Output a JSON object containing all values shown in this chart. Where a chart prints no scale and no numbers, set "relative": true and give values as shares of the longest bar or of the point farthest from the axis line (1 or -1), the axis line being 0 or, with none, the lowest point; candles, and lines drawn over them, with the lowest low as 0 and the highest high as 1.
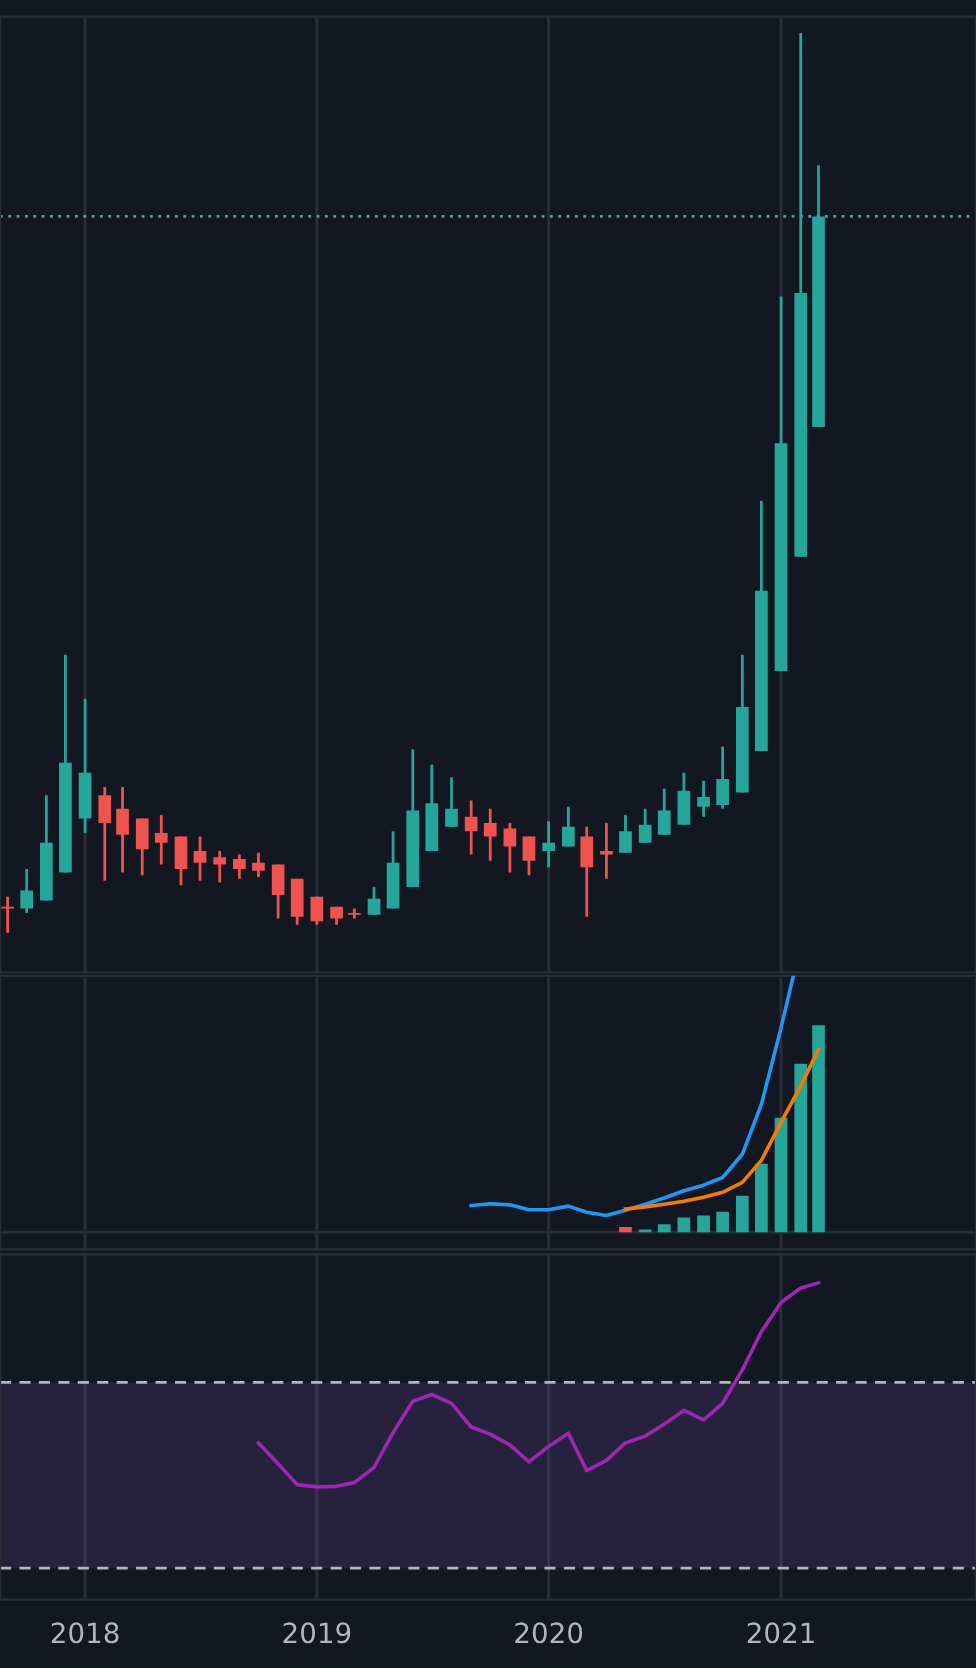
{
  "chart_data": [
    {
      "type": "candlestick",
      "relative": true,
      "tick_labels": false,
      "grid": "x",
      "x": [
        "2017-09",
        "2017-10",
        "2017-11",
        "2017-12",
        "2018-01",
        "2018-02",
        "2018-03",
        "2018-04",
        "2018-05",
        "2018-06",
        "2018-07",
        "2018-08",
        "2018-09",
        "2018-10",
        "2018-11",
        "2018-12",
        "2019-01",
        "2019-02",
        "2019-03",
        "2019-04",
        "2019-05",
        "2019-06",
        "2019-07",
        "2019-08",
        "2019-09",
        "2019-10",
        "2019-11",
        "2019-12",
        "2020-01",
        "2020-02",
        "2020-03",
        "2020-04",
        "2020-05",
        "2020-06",
        "2020-07",
        "2020-08",
        "2020-09",
        "2020-10",
        "2020-11",
        "2020-12",
        "2021-01",
        "2021-02",
        "2021-03"
      ],
      "ohlc": [
        [
          0.029,
          0.04,
          0,
          0.027
        ],
        [
          0.027,
          0.071,
          0.022,
          0.047
        ],
        [
          0.036,
          0.153,
          0.036,
          0.1
        ],
        [
          0.067,
          0.309,
          0.067,
          0.189
        ],
        [
          0.127,
          0.26,
          0.111,
          0.178
        ],
        [
          0.153,
          0.162,
          0.058,
          0.122
        ],
        [
          0.138,
          0.162,
          0.067,
          0.109
        ],
        [
          0.127,
          0.127,
          0.064,
          0.093
        ],
        [
          0.111,
          0.131,
          0.076,
          0.1
        ],
        [
          0.107,
          0.107,
          0.053,
          0.071
        ],
        [
          0.091,
          0.107,
          0.058,
          0.078
        ],
        [
          0.084,
          0.091,
          0.056,
          0.076
        ],
        [
          0.082,
          0.087,
          0.06,
          0.071
        ],
        [
          0.078,
          0.089,
          0.062,
          0.069
        ],
        [
          0.076,
          0.076,
          0.016,
          0.042
        ],
        [
          0.06,
          0.06,
          0.009,
          0.018
        ],
        [
          0.04,
          0.04,
          0.009,
          0.013
        ],
        [
          0.029,
          0.029,
          0.009,
          0.016
        ],
        [
          0.022,
          0.027,
          0.016,
          0.02
        ],
        [
          0.02,
          0.051,
          0.02,
          0.038
        ],
        [
          0.027,
          0.113,
          0.027,
          0.078
        ],
        [
          0.051,
          0.204,
          0.051,
          0.136
        ],
        [
          0.091,
          0.187,
          0.091,
          0.144
        ],
        [
          0.118,
          0.173,
          0.118,
          0.138
        ],
        [
          0.129,
          0.147,
          0.087,
          0.113
        ],
        [
          0.122,
          0.138,
          0.08,
          0.107
        ],
        [
          0.116,
          0.122,
          0.067,
          0.096
        ],
        [
          0.107,
          0.107,
          0.064,
          0.08
        ],
        [
          0.091,
          0.124,
          0.073,
          0.1
        ],
        [
          0.096,
          0.14,
          0.096,
          0.118
        ],
        [
          0.107,
          0.118,
          0.018,
          0.073
        ],
        [
          0.091,
          0.122,
          0.06,
          0.087
        ],
        [
          0.089,
          0.131,
          0.089,
          0.113
        ],
        [
          0.1,
          0.138,
          0.1,
          0.12
        ],
        [
          0.109,
          0.16,
          0.109,
          0.136
        ],
        [
          0.12,
          0.178,
          0.12,
          0.158
        ],
        [
          0.14,
          0.169,
          0.129,
          0.151
        ],
        [
          0.142,
          0.207,
          0.138,
          0.171
        ],
        [
          0.156,
          0.309,
          0.156,
          0.251
        ],
        [
          0.202,
          0.48,
          0.202,
          0.38
        ],
        [
          0.291,
          0.707,
          0.291,
          0.544
        ],
        [
          0.418,
          1.0,
          0.418,
          0.711
        ],
        [
          0.562,
          0.853,
          0.562,
          0.796
        ]
      ],
      "colors": [
        "#ef5350",
        "#26a69a",
        "#26a69a",
        "#26a69a",
        "#26a69a",
        "#ef5350",
        "#ef5350",
        "#ef5350",
        "#ef5350",
        "#ef5350",
        "#ef5350",
        "#ef5350",
        "#ef5350",
        "#ef5350",
        "#ef5350",
        "#ef5350",
        "#ef5350",
        "#ef5350",
        "#ef5350",
        "#26a69a",
        "#26a69a",
        "#26a69a",
        "#26a69a",
        "#26a69a",
        "#ef5350",
        "#ef5350",
        "#ef5350",
        "#ef5350",
        "#26a69a",
        "#26a69a",
        "#ef5350",
        "#ef5350",
        "#26a69a",
        "#26a69a",
        "#26a69a",
        "#26a69a",
        "#26a69a",
        "#26a69a",
        "#26a69a",
        "#26a69a",
        "#26a69a",
        "#26a69a",
        "#26a69a"
      ],
      "ref_lines": [
        {
          "axis": "y",
          "value": 0.796,
          "label": null,
          "color": "#4fa3a5",
          "line_style": "dotted"
        }
      ],
      "xlim": [
        "2017-08-20",
        "2021-11-04"
      ],
      "xticks": [
        "2018",
        "2019",
        "2020",
        "2021"
      ]
    },
    {
      "type": "bar",
      "relative": true,
      "tick_labels": false,
      "grid": "x",
      "series": [
        {
          "type": "bar",
          "x": [
            "2020-05",
            "2020-06",
            "2020-07",
            "2020-08",
            "2020-09",
            "2020-10",
            "2020-11",
            "2020-12",
            "2021-01",
            "2021-02",
            "2021-03"
          ],
          "values": [
            0.02,
            0.01,
            0.031,
            0.057,
            0.065,
            0.08,
            0.143,
            0.268,
            0.448,
            0.659,
            0.81
          ],
          "colors": [
            "#ef5350",
            "#26a69a",
            "#26a69a",
            "#26a69a",
            "#26a69a",
            "#26a69a",
            "#26a69a",
            "#26a69a",
            "#26a69a",
            "#26a69a",
            "#26a69a"
          ]
        },
        {
          "type": "line",
          "color": "#2196f3",
          "x": [
            "2019-09",
            "2019-10",
            "2019-11",
            "2019-12",
            "2020-01",
            "2020-02",
            "2020-03",
            "2020-04",
            "2020-05",
            "2020-06",
            "2020-07",
            "2020-08",
            "2020-09",
            "2020-10",
            "2020-11",
            "2020-12",
            "2021-01",
            "2021-01-20"
          ],
          "values": [
            0.104,
            0.111,
            0.107,
            0.088,
            0.088,
            0.102,
            0.078,
            0.065,
            0.086,
            0.109,
            0.134,
            0.162,
            0.184,
            0.214,
            0.305,
            0.5,
            0.8,
            1.0
          ]
        },
        {
          "type": "line",
          "color": "#f57c00",
          "x": [
            "2020-05",
            "2020-06",
            "2020-07",
            "2020-08",
            "2020-09",
            "2020-10",
            "2020-11",
            "2020-12",
            "2021-01",
            "2021-02",
            "2021-03"
          ],
          "values": [
            0.091,
            0.099,
            0.109,
            0.121,
            0.137,
            0.156,
            0.195,
            0.281,
            0.43,
            0.573,
            0.716
          ]
        }
      ],
      "xlim": [
        "2017-08-20",
        "2021-11-04"
      ],
      "xticks": [
        "2018",
        "2019",
        "2020",
        "2021"
      ]
    },
    {
      "type": "line",
      "relative": true,
      "tick_labels": "x",
      "grid": "x",
      "series": [
        {
          "color": "#9c27b0",
          "x": [
            "2018-10",
            "2018-11",
            "2018-12",
            "2019-01",
            "2019-02",
            "2019-03",
            "2019-04",
            "2019-05",
            "2019-06",
            "2019-07",
            "2019-08",
            "2019-09",
            "2019-10",
            "2019-11",
            "2019-12",
            "2020-01",
            "2020-02",
            "2020-03",
            "2020-04",
            "2020-05",
            "2020-06",
            "2020-07",
            "2020-08",
            "2020-09",
            "2020-10",
            "2020-11",
            "2020-12",
            "2021-01",
            "2021-02",
            "2021-03"
          ],
          "values": [
            0.439,
            0.366,
            0.293,
            0.285,
            0.287,
            0.3,
            0.353,
            0.475,
            0.585,
            0.609,
            0.578,
            0.495,
            0.47,
            0.432,
            0.373,
            0.427,
            0.473,
            0.342,
            0.378,
            0.439,
            0.463,
            0.505,
            0.553,
            0.52,
            0.578,
            0.695,
            0.829,
            0.931,
            0.982,
            1.0
          ]
        }
      ],
      "bands": [
        {
          "axis": "y",
          "from": 0,
          "to": 0.651,
          "label": null,
          "color": "#7e57c2"
        }
      ],
      "ref_lines": [
        {
          "axis": "y",
          "value": 0,
          "label": null,
          "color": "#b2b5be",
          "line_style": "dashed"
        },
        {
          "axis": "y",
          "value": 0.651,
          "label": null,
          "color": "#b2b5be",
          "line_style": "dashed"
        }
      ],
      "xlim": [
        "2017-08-20",
        "2021-11-04"
      ],
      "xticks": [
        "2018",
        "2019",
        "2020",
        "2021"
      ]
    }
  ]
}
